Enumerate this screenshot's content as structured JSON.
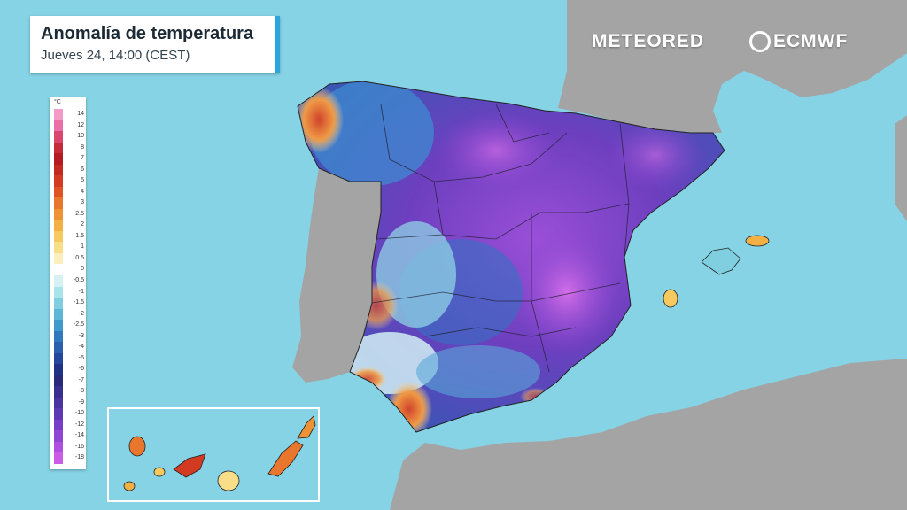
{
  "map": {
    "title": "Anomalía de temperatura",
    "subtitle": "Jueves 24, 14:00 (CEST)"
  },
  "brands": {
    "meteored": "METEORED",
    "ecmwf": "ECMWF"
  },
  "legend": {
    "unit": "°C",
    "labels": [
      "14",
      "12",
      "10",
      "8",
      "7",
      "6",
      "5",
      "4",
      "3",
      "2.5",
      "2",
      "1.5",
      "1",
      "0.5",
      "0",
      "-0.5",
      "-1",
      "-1.5",
      "-2",
      "-2.5",
      "-3",
      "-4",
      "-5",
      "-6",
      "-7",
      "-8",
      "-9",
      "-10",
      "-12",
      "-14",
      "-16",
      "-18"
    ],
    "colors": [
      "#f59ac8",
      "#ea6fa9",
      "#d9476f",
      "#c62b3c",
      "#b51c22",
      "#c42a22",
      "#d33a22",
      "#df5425",
      "#e8772d",
      "#ee9335",
      "#f2b045",
      "#f6ca5e",
      "#f8de88",
      "#fbefbd",
      "#ffffff",
      "#d6f1f3",
      "#a9e4ea",
      "#7fcfe0",
      "#5db6d6",
      "#3f99cc",
      "#3179bd",
      "#2a60ae",
      "#24479b",
      "#1f3286",
      "#272a7b",
      "#37308d",
      "#4a34a0",
      "#5d39b4",
      "#763ec7",
      "#9145d5",
      "#ae50df",
      "#cc5be6"
    ]
  },
  "colors": {
    "sea": "#86d3e6",
    "land": "#a4a4a4",
    "accent": "#2aa6dc"
  }
}
